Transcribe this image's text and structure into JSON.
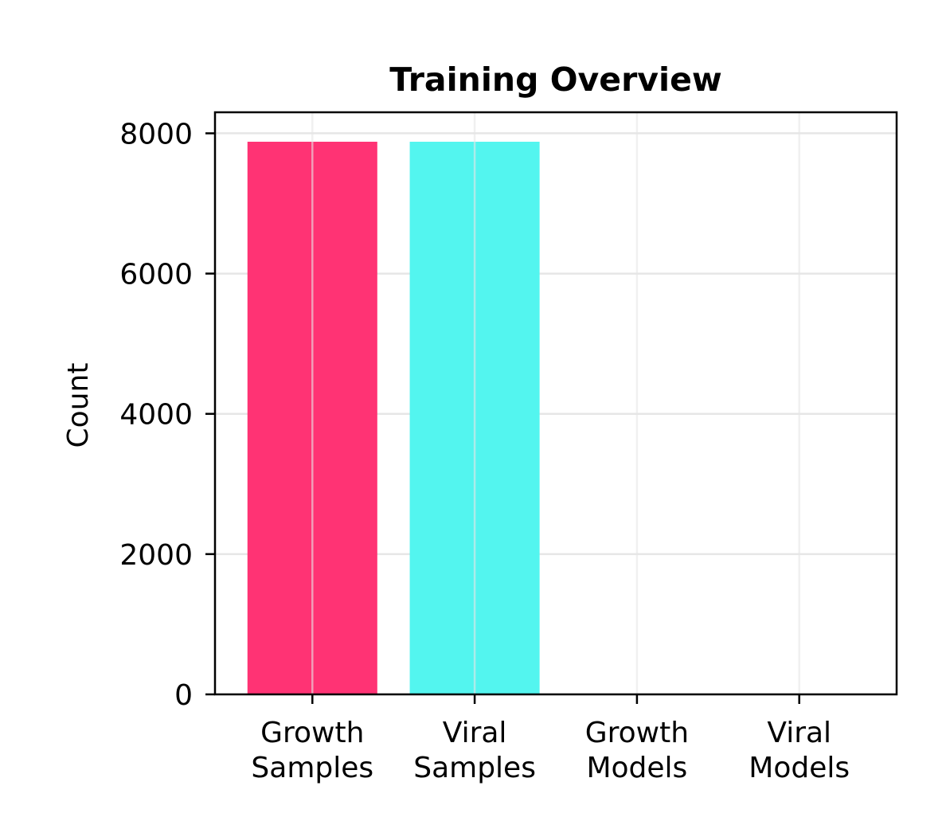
{
  "chart_data": {
    "type": "bar",
    "title": "Training Overview",
    "xlabel": "",
    "ylabel": "Count",
    "categories": [
      [
        "Growth",
        "Samples"
      ],
      [
        "Viral",
        "Samples"
      ],
      [
        "Growth",
        "Models"
      ],
      [
        "Viral",
        "Models"
      ]
    ],
    "values": [
      7880,
      7880,
      0,
      0
    ],
    "colors": [
      "#ff3374",
      "#53f5ef",
      "#53f5ef",
      "#53f5ef"
    ],
    "ylim": [
      0,
      8300
    ],
    "yticks": [
      0,
      2000,
      4000,
      6000,
      8000
    ],
    "grid": true
  }
}
